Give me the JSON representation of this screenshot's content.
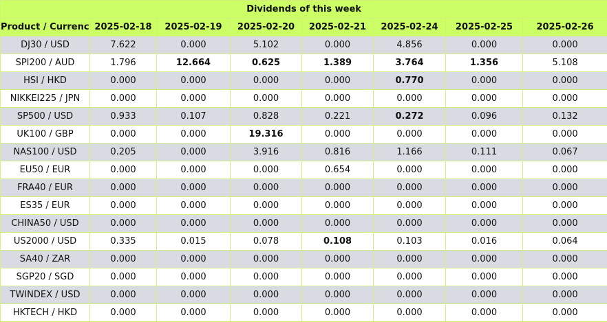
{
  "title": "Dividends of this week",
  "header": {
    "product": "Product / Currency",
    "dates": [
      "2025-02-18",
      "2025-02-19",
      "2025-02-20",
      "2025-02-21",
      "2025-02-24",
      "2025-02-25",
      "2025-02-26"
    ]
  },
  "colors": {
    "header_bg": "#ccff66",
    "row_alt_bg": "#d9dbe3",
    "row_bg": "#ffffff",
    "border": "#d4f07a"
  },
  "rows": [
    {
      "product": "DJ30 / USD",
      "values": [
        "7.622",
        "0.000",
        "5.102",
        "0.000",
        "4.856",
        "0.000",
        "0.000"
      ],
      "bold": [
        false,
        false,
        false,
        false,
        false,
        false,
        false
      ]
    },
    {
      "product": "SPI200 / AUD",
      "values": [
        "1.796",
        "12.664",
        "0.625",
        "1.389",
        "3.764",
        "1.356",
        "5.108"
      ],
      "bold": [
        false,
        true,
        true,
        true,
        true,
        true,
        false
      ]
    },
    {
      "product": "HSI / HKD",
      "values": [
        "0.000",
        "0.000",
        "0.000",
        "0.000",
        "0.770",
        "0.000",
        "0.000"
      ],
      "bold": [
        false,
        false,
        false,
        false,
        true,
        false,
        false
      ]
    },
    {
      "product": "NIKKEI225 / JPN",
      "values": [
        "0.000",
        "0.000",
        "0.000",
        "0.000",
        "0.000",
        "0.000",
        "0.000"
      ],
      "bold": [
        false,
        false,
        false,
        false,
        false,
        false,
        false
      ]
    },
    {
      "product": "SP500 / USD",
      "values": [
        "0.933",
        "0.107",
        "0.828",
        "0.221",
        "0.272",
        "0.096",
        "0.132"
      ],
      "bold": [
        false,
        false,
        false,
        false,
        true,
        false,
        false
      ]
    },
    {
      "product": "UK100 / GBP",
      "values": [
        "0.000",
        "0.000",
        "19.316",
        "0.000",
        "0.000",
        "0.000",
        "0.000"
      ],
      "bold": [
        false,
        false,
        true,
        false,
        false,
        false,
        false
      ]
    },
    {
      "product": "NAS100 / USD",
      "values": [
        "0.205",
        "0.000",
        "3.916",
        "0.816",
        "1.166",
        "0.111",
        "0.067"
      ],
      "bold": [
        false,
        false,
        false,
        false,
        false,
        false,
        false
      ]
    },
    {
      "product": "EU50 / EUR",
      "values": [
        "0.000",
        "0.000",
        "0.000",
        "0.654",
        "0.000",
        "0.000",
        "0.000"
      ],
      "bold": [
        false,
        false,
        false,
        false,
        false,
        false,
        false
      ]
    },
    {
      "product": "FRA40 / EUR",
      "values": [
        "0.000",
        "0.000",
        "0.000",
        "0.000",
        "0.000",
        "0.000",
        "0.000"
      ],
      "bold": [
        false,
        false,
        false,
        false,
        false,
        false,
        false
      ]
    },
    {
      "product": "ES35 / EUR",
      "values": [
        "0.000",
        "0.000",
        "0.000",
        "0.000",
        "0.000",
        "0.000",
        "0.000"
      ],
      "bold": [
        false,
        false,
        false,
        false,
        false,
        false,
        false
      ]
    },
    {
      "product": "CHINA50 / USD",
      "values": [
        "0.000",
        "0.000",
        "0.000",
        "0.000",
        "0.000",
        "0.000",
        "0.000"
      ],
      "bold": [
        false,
        false,
        false,
        false,
        false,
        false,
        false
      ]
    },
    {
      "product": "US2000 / USD",
      "values": [
        "0.335",
        "0.015",
        "0.078",
        "0.108",
        "0.103",
        "0.016",
        "0.064"
      ],
      "bold": [
        false,
        false,
        false,
        true,
        false,
        false,
        false
      ]
    },
    {
      "product": "SA40 / ZAR",
      "values": [
        "0.000",
        "0.000",
        "0.000",
        "0.000",
        "0.000",
        "0.000",
        "0.000"
      ],
      "bold": [
        false,
        false,
        false,
        false,
        false,
        false,
        false
      ]
    },
    {
      "product": "SGP20 / SGD",
      "values": [
        "0.000",
        "0.000",
        "0.000",
        "0.000",
        "0.000",
        "0.000",
        "0.000"
      ],
      "bold": [
        false,
        false,
        false,
        false,
        false,
        false,
        false
      ]
    },
    {
      "product": "TWINDEX / USD",
      "values": [
        "0.000",
        "0.000",
        "0.000",
        "0.000",
        "0.000",
        "0.000",
        "0.000"
      ],
      "bold": [
        false,
        false,
        false,
        false,
        false,
        false,
        false
      ]
    },
    {
      "product": "HKTECH / HKD",
      "values": [
        "0.000",
        "0.000",
        "0.000",
        "0.000",
        "0.000",
        "0.000",
        "0.000"
      ],
      "bold": [
        false,
        false,
        false,
        false,
        false,
        false,
        false
      ]
    }
  ]
}
